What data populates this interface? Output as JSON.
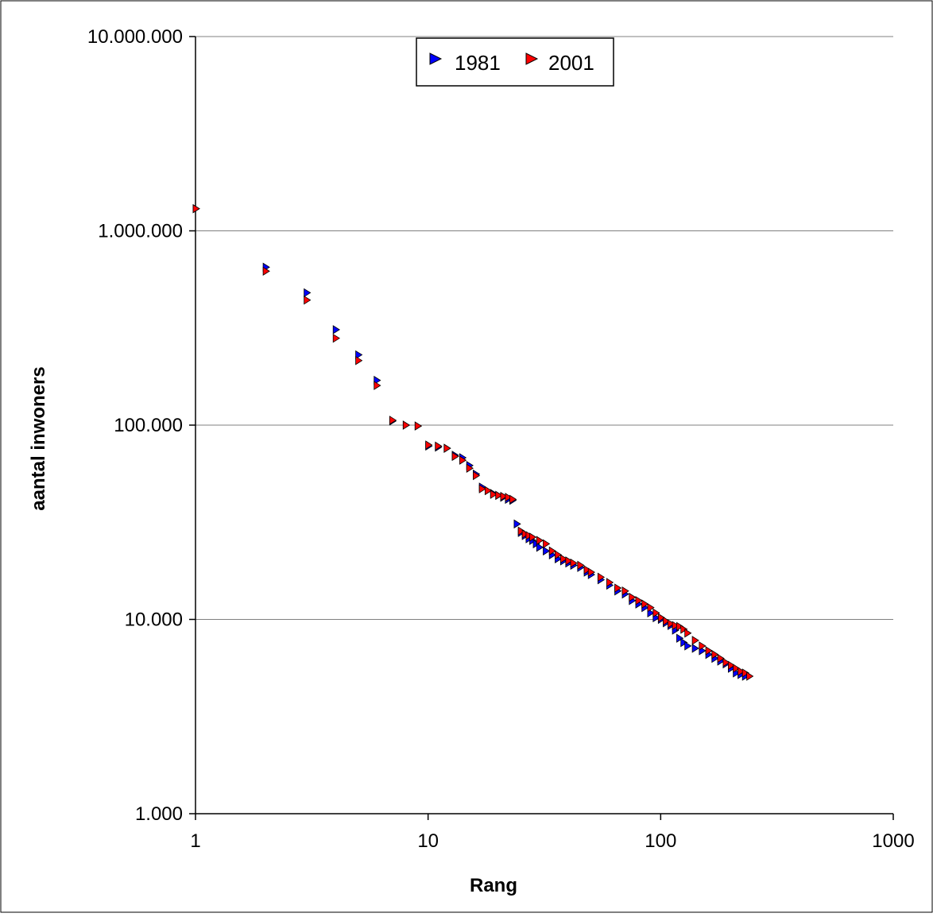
{
  "chart_data": {
    "type": "scatter",
    "title": "",
    "xlabel": "Rang",
    "ylabel": "aantal inwoners",
    "x_scale": "log",
    "y_scale": "log",
    "xlim": [
      1,
      1000
    ],
    "ylim": [
      1000,
      10000000
    ],
    "x_ticks": [
      1,
      10,
      100,
      1000
    ],
    "x_tick_labels": [
      "1",
      "10",
      "100",
      "1000"
    ],
    "y_ticks": [
      1000,
      10000,
      100000,
      1000000,
      10000000
    ],
    "y_tick_labels": [
      "1.000",
      "10.000",
      "100.000",
      "1.000.000",
      "10.000.000"
    ],
    "grid": "horizontal major gridlines",
    "legend_position": "top-center",
    "series": [
      {
        "name": "1981",
        "color": "#0000ff",
        "marker": "triangle-right",
        "x": [
          1,
          2,
          3,
          4,
          5,
          6,
          7,
          8,
          9,
          10,
          11,
          12,
          13,
          14,
          15,
          16,
          17,
          18,
          19,
          20,
          21,
          22,
          23,
          24,
          25,
          26,
          27,
          28,
          29,
          30,
          32,
          34,
          36,
          38,
          40,
          42,
          45,
          48,
          50,
          55,
          60,
          65,
          70,
          75,
          80,
          85,
          90,
          95,
          100,
          105,
          110,
          115,
          120,
          125,
          130,
          140,
          150,
          160,
          170,
          180,
          190,
          200,
          210,
          220,
          230
        ],
        "y": [
          1300000,
          650000,
          480000,
          310000,
          230000,
          170000,
          105000,
          100000,
          99000,
          78000,
          77000,
          76000,
          70000,
          68000,
          62000,
          56000,
          48000,
          46000,
          44500,
          43500,
          42500,
          41500,
          41000,
          31000,
          28000,
          27000,
          26000,
          25500,
          24500,
          23500,
          22500,
          21500,
          20500,
          20000,
          19500,
          19000,
          18500,
          17500,
          17000,
          16000,
          15000,
          14000,
          13500,
          12500,
          12000,
          11500,
          10800,
          10200,
          10000,
          9600,
          9300,
          8800,
          8000,
          7600,
          7300,
          7100,
          6900,
          6600,
          6300,
          6100,
          5900,
          5600,
          5300,
          5200,
          5100
        ]
      },
      {
        "name": "2001",
        "color": "#ff0000",
        "marker": "triangle-right",
        "x": [
          1,
          2,
          3,
          4,
          5,
          6,
          7,
          8,
          9,
          10,
          11,
          12,
          13,
          14,
          15,
          16,
          17,
          18,
          19,
          20,
          21,
          22,
          23,
          25,
          26,
          27,
          28,
          30,
          32,
          34,
          36,
          38,
          40,
          42,
          45,
          48,
          50,
          55,
          60,
          65,
          70,
          75,
          80,
          85,
          90,
          95,
          100,
          105,
          110,
          115,
          120,
          125,
          130,
          140,
          150,
          160,
          170,
          180,
          190,
          200,
          210,
          220,
          230,
          240
        ],
        "y": [
          1300000,
          620000,
          440000,
          280000,
          215000,
          160000,
          106000,
          100000,
          99000,
          79000,
          78000,
          76000,
          69000,
          66000,
          60000,
          55000,
          47000,
          46000,
          44000,
          43500,
          43000,
          42500,
          41500,
          28500,
          27500,
          27000,
          26500,
          25500,
          24500,
          22500,
          21500,
          20500,
          20000,
          19500,
          19000,
          18000,
          17500,
          16500,
          15500,
          14500,
          14000,
          13000,
          12500,
          12000,
          11500,
          10800,
          10200,
          9800,
          9500,
          9300,
          9200,
          8900,
          8500,
          7800,
          7300,
          6900,
          6600,
          6300,
          6000,
          5800,
          5600,
          5400,
          5300,
          5100
        ]
      }
    ]
  }
}
